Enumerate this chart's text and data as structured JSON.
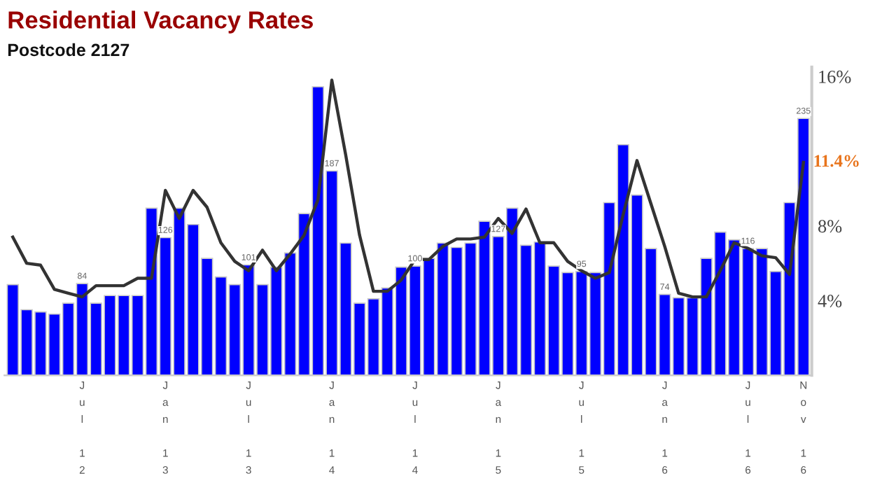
{
  "chart_data": {
    "type": "bar",
    "title": "Residential Vacancy Rates",
    "subtitle": "Postcode 2127",
    "categories": [
      null,
      null,
      null,
      null,
      null,
      "Jul 12",
      null,
      null,
      null,
      null,
      null,
      "Jan 13",
      null,
      null,
      null,
      null,
      null,
      "Jul 13",
      null,
      null,
      null,
      null,
      null,
      "Jan 14",
      null,
      null,
      null,
      null,
      null,
      "Jul 14",
      null,
      null,
      null,
      null,
      null,
      "Jan 15",
      null,
      null,
      null,
      null,
      null,
      "Jul 15",
      null,
      null,
      null,
      null,
      null,
      "Jan 16",
      null,
      null,
      null,
      null,
      null,
      "Jul 16",
      null,
      null,
      null,
      "Nov 16"
    ],
    "series": [
      {
        "axis": "y2",
        "color": "#0000ff",
        "values": [
          83,
          60,
          58,
          56,
          66,
          84,
          66,
          73,
          73,
          73,
          153,
          126,
          153,
          138,
          107,
          90,
          83,
          101,
          83,
          99,
          112,
          148,
          264,
          187,
          121,
          66,
          70,
          80,
          99,
          100,
          107,
          121,
          117,
          121,
          141,
          127,
          153,
          119,
          122,
          100,
          94,
          95,
          94,
          158,
          211,
          165,
          116,
          74,
          71,
          71,
          107,
          131,
          124,
          116,
          116,
          95,
          158,
          235
        ],
        "value_labels": [
          null,
          null,
          null,
          null,
          null,
          "84",
          null,
          null,
          null,
          null,
          null,
          "126",
          null,
          null,
          null,
          null,
          null,
          "101",
          null,
          null,
          null,
          null,
          null,
          "187",
          null,
          null,
          null,
          null,
          null,
          "100",
          null,
          null,
          null,
          null,
          null,
          "127",
          null,
          null,
          null,
          null,
          null,
          "95",
          null,
          null,
          null,
          null,
          null,
          "74",
          null,
          null,
          null,
          null,
          null,
          "116",
          null,
          null,
          null,
          "235"
        ]
      },
      {
        "type": "line",
        "axis": "y",
        "color": "#333333",
        "values": [
          7.4,
          6.0,
          5.9,
          4.6,
          4.4,
          4.2,
          4.8,
          4.8,
          4.8,
          5.2,
          5.2,
          9.9,
          8.4,
          9.9,
          9.0,
          7.1,
          6.1,
          5.6,
          6.7,
          5.6,
          6.5,
          7.5,
          9.4,
          15.8,
          11.8,
          7.5,
          4.5,
          4.5,
          5.1,
          6.2,
          6.2,
          6.9,
          7.3,
          7.3,
          7.4,
          8.4,
          7.6,
          8.9,
          7.1,
          7.1,
          6.1,
          5.6,
          5.2,
          5.5,
          8.6,
          11.5,
          9.2,
          6.9,
          4.4,
          4.2,
          4.2,
          5.6,
          7.1,
          6.8,
          6.4,
          6.3,
          5.4,
          11.4
        ],
        "value_labels": [
          null,
          null,
          null,
          null,
          null,
          null,
          null,
          null,
          null,
          null,
          null,
          null,
          null,
          null,
          null,
          null,
          null,
          null,
          null,
          null,
          null,
          null,
          null,
          null,
          null,
          null,
          null,
          null,
          null,
          null,
          null,
          null,
          null,
          null,
          null,
          null,
          null,
          null,
          null,
          null,
          null,
          null,
          null,
          null,
          null,
          null,
          null,
          null,
          null,
          null,
          null,
          null,
          null,
          null,
          null,
          null,
          null,
          "11.4%"
        ]
      }
    ],
    "ylim": [
      0,
      16.5
    ],
    "yticks": [
      {
        "value": 4,
        "label": "4%"
      },
      {
        "value": 8,
        "label": "8%"
      },
      {
        "value": 16,
        "label": "16%"
      }
    ],
    "y2lim": [
      0,
      282
    ]
  }
}
